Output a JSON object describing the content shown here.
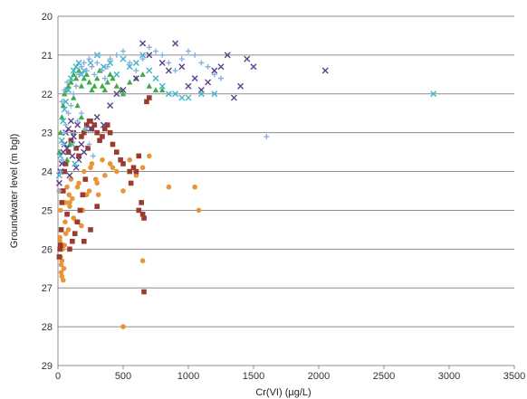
{
  "chart_data": {
    "type": "scatter",
    "xlabel": "Cr(VI) (µg/L)",
    "ylabel": "Groundwater level (m bgl)",
    "xlim": [
      0,
      3500
    ],
    "ylim": [
      20,
      29
    ],
    "y_inverted": true,
    "x_ticks": [
      "0",
      "500",
      "1000",
      "1500",
      "2000",
      "2500",
      "3000",
      "3500"
    ],
    "y_ticks": [
      "20",
      "21",
      "22",
      "23",
      "24",
      "25",
      "26",
      "27",
      "28",
      "29"
    ],
    "grid": "horizontal major gridlines",
    "legend": "none",
    "series": [
      {
        "marker": "circle",
        "color": "#e8953a",
        "x": [
          10,
          20,
          15,
          30,
          25,
          40,
          60,
          100,
          150,
          200,
          250,
          300,
          120,
          80,
          50,
          180,
          220,
          90,
          70,
          35,
          400,
          450,
          500,
          550,
          600,
          650,
          700,
          850,
          1050,
          1080,
          650,
          500,
          45,
          30,
          20,
          15,
          60,
          110,
          160,
          210,
          260,
          310,
          360,
          420,
          70,
          90,
          140,
          190,
          240,
          290,
          340,
          25,
          55,
          85
        ],
        "y": [
          24.5,
          25.0,
          25.8,
          26.3,
          26.6,
          26.8,
          24.8,
          24.2,
          24.4,
          24.0,
          23.9,
          24.3,
          25.2,
          25.5,
          25.9,
          25.4,
          24.6,
          24.9,
          25.1,
          26.0,
          23.8,
          24.0,
          24.5,
          23.7,
          24.1,
          23.9,
          23.6,
          24.4,
          24.4,
          25.0,
          26.3,
          28.0,
          26.5,
          26.7,
          26.2,
          25.7,
          25.6,
          24.7,
          24.3,
          24.2,
          23.8,
          24.6,
          24.1,
          23.9,
          24.4,
          24.8,
          25.3,
          25.0,
          24.5,
          24.2,
          23.7,
          26.4,
          25.3,
          24.6
        ]
      },
      {
        "marker": "square",
        "color": "#9b3b2f",
        "x": [
          10,
          15,
          20,
          25,
          30,
          40,
          50,
          60,
          80,
          100,
          120,
          140,
          160,
          180,
          200,
          220,
          240,
          260,
          280,
          300,
          320,
          340,
          360,
          380,
          400,
          420,
          450,
          480,
          500,
          550,
          600,
          620,
          650,
          660,
          700,
          680,
          250,
          230,
          210,
          190,
          170,
          150,
          130,
          110,
          90,
          70,
          560,
          580,
          620,
          640,
          660,
          200,
          250,
          300
        ],
        "y": [
          26.2,
          26.0,
          25.9,
          25.5,
          24.8,
          24.5,
          24.0,
          23.8,
          23.5,
          23.2,
          23.0,
          23.4,
          23.6,
          23.1,
          23.0,
          22.8,
          22.7,
          22.9,
          22.8,
          23.0,
          23.2,
          23.1,
          22.9,
          22.8,
          23.0,
          23.3,
          23.5,
          23.7,
          23.8,
          24.0,
          24.0,
          25.0,
          25.1,
          27.1,
          22.1,
          22.2,
          22.7,
          23.4,
          24.2,
          24.6,
          25.0,
          25.3,
          25.6,
          25.8,
          26.0,
          25.1,
          24.3,
          23.9,
          23.6,
          24.8,
          25.2,
          25.8,
          25.5,
          24.9
        ]
      },
      {
        "marker": "triangle",
        "color": "#3faa4a",
        "x": [
          10,
          20,
          30,
          40,
          50,
          60,
          80,
          100,
          120,
          140,
          160,
          180,
          200,
          220,
          240,
          260,
          280,
          300,
          320,
          340,
          360,
          380,
          400,
          420,
          450,
          480,
          500,
          550,
          600,
          650,
          700,
          750,
          800,
          120,
          150,
          180,
          210,
          90,
          70
        ],
        "y": [
          23.5,
          23.0,
          22.6,
          22.3,
          22.0,
          21.9,
          21.8,
          21.7,
          21.5,
          21.6,
          21.4,
          21.8,
          21.6,
          21.5,
          21.7,
          21.9,
          21.8,
          21.6,
          21.4,
          21.8,
          21.9,
          21.7,
          21.5,
          21.6,
          21.8,
          21.9,
          22.0,
          21.7,
          21.6,
          21.5,
          21.8,
          21.9,
          21.9,
          22.1,
          22.3,
          22.6,
          22.9,
          23.3,
          23.7
        ]
      },
      {
        "marker": "x",
        "color": "#5b3f8c",
        "x": [
          10,
          20,
          30,
          40,
          50,
          60,
          80,
          100,
          120,
          150,
          180,
          200,
          250,
          300,
          350,
          400,
          450,
          500,
          600,
          650,
          700,
          800,
          850,
          900,
          950,
          1000,
          1050,
          1100,
          1150,
          1200,
          1250,
          1300,
          1350,
          1400,
          1450,
          1500,
          2050,
          160,
          140,
          110,
          90,
          70
        ],
        "y": [
          24.3,
          24.0,
          23.8,
          23.5,
          23.3,
          23.0,
          22.9,
          22.7,
          23.1,
          22.8,
          23.3,
          23.5,
          22.9,
          22.6,
          22.8,
          22.3,
          22.0,
          21.9,
          21.6,
          20.7,
          21.0,
          21.2,
          21.4,
          20.7,
          21.3,
          21.8,
          21.6,
          21.9,
          21.7,
          21.4,
          21.3,
          21.0,
          22.1,
          21.8,
          21.1,
          21.3,
          21.4,
          23.7,
          23.9,
          23.6,
          24.1,
          23.4
        ]
      },
      {
        "marker": "x",
        "color": "#3fb4c8",
        "x": [
          10,
          20,
          30,
          40,
          50,
          60,
          80,
          100,
          120,
          140,
          160,
          180,
          200,
          250,
          300,
          350,
          400,
          450,
          500,
          550,
          600,
          650,
          700,
          750,
          800,
          850,
          900,
          950,
          1000,
          1100,
          1200,
          2880,
          130,
          110
        ],
        "y": [
          24.1,
          23.6,
          23.2,
          22.7,
          22.4,
          22.2,
          21.9,
          21.6,
          21.4,
          21.3,
          21.2,
          21.5,
          21.4,
          21.2,
          21.0,
          21.3,
          21.2,
          21.5,
          21.1,
          21.3,
          21.2,
          21.0,
          21.4,
          21.6,
          21.8,
          22.0,
          22.0,
          22.1,
          22.1,
          22.0,
          22.0,
          22.0,
          23.8,
          23.3
        ]
      },
      {
        "marker": "plus",
        "color": "#8cb0dc",
        "x": [
          10,
          20,
          30,
          40,
          50,
          60,
          80,
          100,
          120,
          140,
          160,
          180,
          200,
          220,
          240,
          260,
          280,
          300,
          320,
          340,
          360,
          380,
          400,
          450,
          500,
          550,
          600,
          650,
          700,
          750,
          800,
          850,
          900,
          950,
          1000,
          1050,
          1100,
          1150,
          1200,
          1250,
          1600,
          120,
          150,
          180,
          210,
          240,
          270,
          30,
          50,
          70
        ],
        "y": [
          24.5,
          24.0,
          23.7,
          23.3,
          23.0,
          22.8,
          22.5,
          22.3,
          22.0,
          21.8,
          21.5,
          21.3,
          21.2,
          21.4,
          21.1,
          21.3,
          21.5,
          21.2,
          21.0,
          21.4,
          21.6,
          21.3,
          21.1,
          21.0,
          20.9,
          21.2,
          21.4,
          21.1,
          20.8,
          20.9,
          21.0,
          21.2,
          21.4,
          21.1,
          20.9,
          21.0,
          21.2,
          21.3,
          21.5,
          21.6,
          23.1,
          23.0,
          22.7,
          22.5,
          22.9,
          23.3,
          23.6,
          22.2,
          21.9,
          21.7
        ]
      }
    ]
  }
}
